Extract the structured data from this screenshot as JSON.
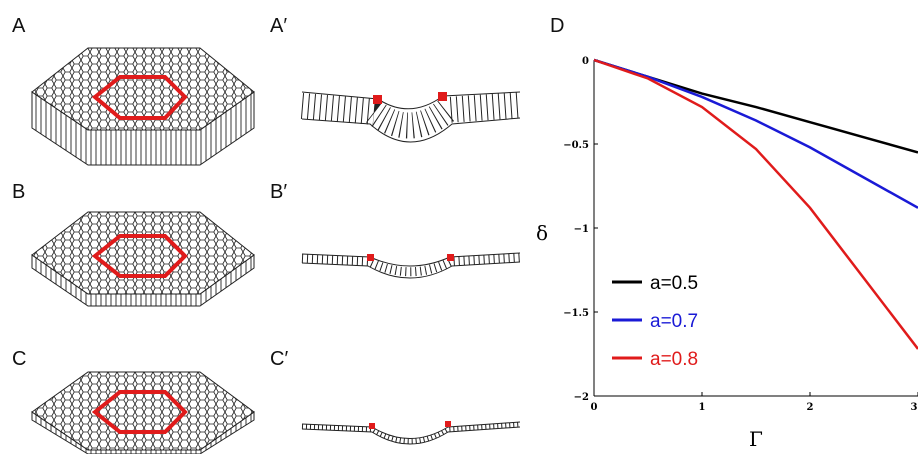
{
  "panels": [
    {
      "label": "A"
    },
    {
      "label": "A′"
    },
    {
      "label": "B"
    },
    {
      "label": "B′"
    },
    {
      "label": "C"
    },
    {
      "label": "C′"
    },
    {
      "label": "D"
    }
  ],
  "chart_data": {
    "type": "line",
    "x": [
      0,
      0.5,
      1,
      1.5,
      2,
      2.5,
      3
    ],
    "xlabel": "Γ",
    "ylabel": "δ",
    "xlim": [
      0,
      3
    ],
    "ylim": [
      -2,
      0
    ],
    "xticks": [
      0,
      1,
      2,
      3
    ],
    "yticks": [
      {
        "value": 0,
        "label": "0"
      },
      {
        "value": -0.5,
        "label": "−0.5"
      },
      {
        "value": -1,
        "label": "−1"
      },
      {
        "value": -1.5,
        "label": "−1.5"
      },
      {
        "value": -2,
        "label": "−2"
      }
    ],
    "legend": "lower left",
    "series": [
      {
        "name": "a=0.5",
        "color": "#000000",
        "values": [
          0,
          -0.1,
          -0.2,
          -0.28,
          -0.37,
          -0.46,
          -0.55
        ]
      },
      {
        "name": "a=0.7",
        "color": "#1a1ad6",
        "values": [
          0,
          -0.1,
          -0.22,
          -0.36,
          -0.52,
          -0.7,
          -0.88
        ]
      },
      {
        "name": "a=0.8",
        "color": "#e01b1b",
        "values": [
          0,
          -0.11,
          -0.28,
          -0.53,
          -0.88,
          -1.3,
          -1.72
        ]
      }
    ]
  }
}
